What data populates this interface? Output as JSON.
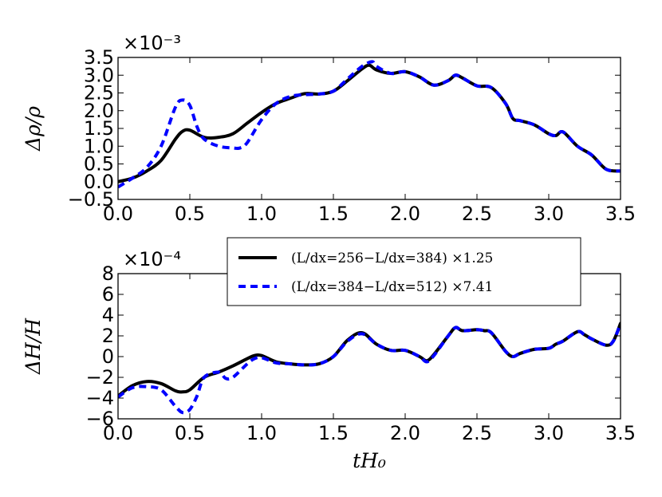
{
  "chart_data": [
    {
      "type": "line",
      "ylabel": "Δρ/ρ",
      "offset_label": "×10⁻³",
      "xlim": [
        0.0,
        3.5
      ],
      "ylim": [
        -0.5,
        3.5
      ],
      "xticks": [
        "0.0",
        "0.5",
        "1.0",
        "1.5",
        "2.0",
        "2.5",
        "3.0",
        "3.5"
      ],
      "yticks": [
        "−0.5",
        "0.0",
        "0.5",
        "1.0",
        "1.5",
        "2.0",
        "2.5",
        "3.0",
        "3.5"
      ],
      "xtick_values": [
        0.0,
        0.5,
        1.0,
        1.5,
        2.0,
        2.5,
        3.0,
        3.5
      ],
      "ytick_values": [
        -0.5,
        0.0,
        0.5,
        1.0,
        1.5,
        2.0,
        2.5,
        3.0,
        3.5
      ],
      "series": [
        {
          "name": "(L/dx=256−L/dx=384) ×1.25",
          "color": "#000000",
          "style": "solid",
          "x": [
            0.0,
            0.1,
            0.2,
            0.3,
            0.4,
            0.45,
            0.5,
            0.6,
            0.7,
            0.8,
            0.9,
            1.0,
            1.1,
            1.2,
            1.3,
            1.4,
            1.5,
            1.6,
            1.7,
            1.75,
            1.8,
            1.9,
            2.0,
            2.1,
            2.2,
            2.3,
            2.35,
            2.4,
            2.5,
            2.6,
            2.7,
            2.75,
            2.8,
            2.9,
            3.0,
            3.05,
            3.1,
            3.2,
            3.3,
            3.4,
            3.5
          ],
          "y": [
            0.0,
            0.1,
            0.3,
            0.6,
            1.2,
            1.42,
            1.45,
            1.25,
            1.25,
            1.35,
            1.65,
            1.95,
            2.2,
            2.35,
            2.48,
            2.47,
            2.55,
            2.85,
            3.18,
            3.28,
            3.15,
            3.05,
            3.1,
            2.95,
            2.72,
            2.85,
            3.0,
            2.92,
            2.7,
            2.65,
            2.2,
            1.78,
            1.72,
            1.6,
            1.35,
            1.3,
            1.4,
            1.0,
            0.75,
            0.35,
            0.3
          ]
        },
        {
          "name": "(L/dx=384−L/dx=512) ×7.41",
          "color": "#0000ff",
          "style": "dashed",
          "x": [
            0.0,
            0.1,
            0.2,
            0.3,
            0.4,
            0.45,
            0.5,
            0.55,
            0.6,
            0.7,
            0.8,
            0.85,
            0.9,
            1.0,
            1.1,
            1.2,
            1.3,
            1.4,
            1.5,
            1.6,
            1.7,
            1.77,
            1.8,
            1.9,
            2.0,
            2.1,
            2.2,
            2.3,
            2.35,
            2.4,
            2.5,
            2.6,
            2.7,
            2.75,
            2.8,
            2.9,
            3.0,
            3.05,
            3.1,
            3.2,
            3.3,
            3.4,
            3.5
          ],
          "y": [
            -0.15,
            0.1,
            0.4,
            1.0,
            2.1,
            2.3,
            2.15,
            1.55,
            1.2,
            1.0,
            0.95,
            0.95,
            1.1,
            1.75,
            2.2,
            2.4,
            2.45,
            2.47,
            2.55,
            2.9,
            3.25,
            3.38,
            3.25,
            3.05,
            3.1,
            2.95,
            2.72,
            2.85,
            3.0,
            2.92,
            2.7,
            2.65,
            2.2,
            1.78,
            1.72,
            1.6,
            1.35,
            1.3,
            1.4,
            1.0,
            0.75,
            0.35,
            0.3
          ]
        }
      ]
    },
    {
      "type": "line",
      "ylabel": "ΔH/H",
      "xlabel": "tH₀",
      "offset_label": "×10⁻⁴",
      "xlim": [
        0.0,
        3.5
      ],
      "ylim": [
        -6,
        8
      ],
      "xticks": [
        "0.0",
        "0.5",
        "1.0",
        "1.5",
        "2.0",
        "2.5",
        "3.0",
        "3.5"
      ],
      "yticks": [
        "−6",
        "−4",
        "−2",
        "0",
        "2",
        "4",
        "6",
        "8"
      ],
      "xtick_values": [
        0.0,
        0.5,
        1.0,
        1.5,
        2.0,
        2.5,
        3.0,
        3.5
      ],
      "ytick_values": [
        -6,
        -4,
        -2,
        0,
        2,
        4,
        6,
        8
      ],
      "series": [
        {
          "name": "(L/dx=256−L/dx=384) ×1.25",
          "color": "#000000",
          "style": "solid",
          "x": [
            0.0,
            0.1,
            0.2,
            0.3,
            0.4,
            0.45,
            0.5,
            0.6,
            0.7,
            0.8,
            0.9,
            0.95,
            1.0,
            1.1,
            1.2,
            1.3,
            1.4,
            1.5,
            1.6,
            1.7,
            1.8,
            1.9,
            2.0,
            2.1,
            2.15,
            2.2,
            2.3,
            2.35,
            2.4,
            2.5,
            2.55,
            2.6,
            2.7,
            2.75,
            2.8,
            2.9,
            3.0,
            3.05,
            3.1,
            3.2,
            3.25,
            3.3,
            3.4,
            3.45,
            3.5
          ],
          "y": [
            -3.8,
            -2.8,
            -2.4,
            -2.6,
            -3.3,
            -3.4,
            -3.2,
            -2.0,
            -1.5,
            -0.9,
            -0.2,
            0.1,
            0.1,
            -0.5,
            -0.7,
            -0.8,
            -0.7,
            0.0,
            1.6,
            2.3,
            1.2,
            0.6,
            0.6,
            0.0,
            -0.4,
            0.2,
            2.0,
            2.8,
            2.5,
            2.6,
            2.5,
            2.3,
            0.5,
            0.0,
            0.3,
            0.7,
            0.8,
            1.2,
            1.5,
            2.4,
            2.1,
            1.7,
            1.1,
            1.5,
            3.2
          ]
        },
        {
          "name": "(L/dx=384−L/dx=512) ×7.41",
          "color": "#0000ff",
          "style": "dashed",
          "x": [
            0.0,
            0.1,
            0.2,
            0.3,
            0.4,
            0.45,
            0.5,
            0.55,
            0.6,
            0.7,
            0.75,
            0.8,
            0.9,
            0.95,
            1.0,
            1.1,
            1.2,
            1.3,
            1.4,
            1.5,
            1.6,
            1.7,
            1.8,
            1.9,
            2.0,
            2.1,
            2.15,
            2.2,
            2.3,
            2.35,
            2.4,
            2.5,
            2.55,
            2.6,
            2.7,
            2.75,
            2.8,
            2.9,
            3.0,
            3.05,
            3.1,
            3.2,
            3.25,
            3.3,
            3.4,
            3.45,
            3.5
          ],
          "y": [
            -3.9,
            -3.0,
            -2.9,
            -3.2,
            -4.8,
            -5.4,
            -5.1,
            -3.8,
            -2.0,
            -1.5,
            -2.1,
            -2.0,
            -0.7,
            -0.2,
            -0.1,
            -0.6,
            -0.7,
            -0.8,
            -0.7,
            0.0,
            1.5,
            2.2,
            1.2,
            0.6,
            0.6,
            0.0,
            -0.5,
            0.1,
            2.0,
            2.8,
            2.5,
            2.6,
            2.5,
            2.3,
            0.5,
            0.0,
            0.3,
            0.7,
            0.8,
            1.2,
            1.5,
            2.4,
            2.1,
            1.7,
            1.1,
            1.5,
            3.2
          ]
        }
      ]
    }
  ],
  "legend": {
    "items": [
      {
        "label": "(L/dx=256−L/dx=384) ×1.25",
        "color": "#000000",
        "style": "solid"
      },
      {
        "label": "(L/dx=384−L/dx=512) ×7.41",
        "color": "#0000ff",
        "style": "dashed"
      }
    ],
    "placement": "upper-center of lower panel"
  }
}
